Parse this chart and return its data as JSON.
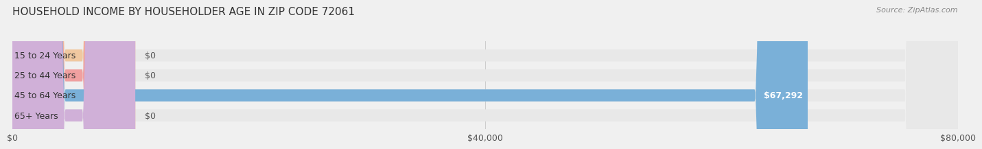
{
  "title": "HOUSEHOLD INCOME BY HOUSEHOLDER AGE IN ZIP CODE 72061",
  "source": "Source: ZipAtlas.com",
  "categories": [
    "15 to 24 Years",
    "25 to 44 Years",
    "45 to 64 Years",
    "65+ Years"
  ],
  "values": [
    0,
    0,
    67292,
    0
  ],
  "bar_colors": [
    "#f0c8a0",
    "#f0a0a0",
    "#7ab0d8",
    "#d0b0d8"
  ],
  "value_labels": [
    "$0",
    "$0",
    "$67,292",
    "$0"
  ],
  "xlim": [
    0,
    80000
  ],
  "xticks": [
    0,
    40000,
    80000
  ],
  "xticklabels": [
    "$0",
    "$40,000",
    "$80,000"
  ],
  "background_color": "#f0f0f0",
  "bar_bg_color": "#e8e8e8",
  "title_fontsize": 11,
  "label_fontsize": 9,
  "value_fontsize": 9,
  "source_fontsize": 8,
  "small_bar_width": 10400
}
